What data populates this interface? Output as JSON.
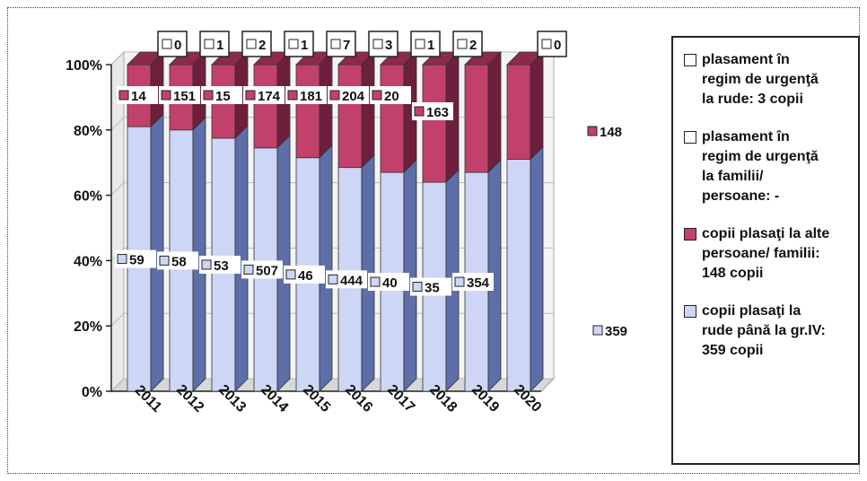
{
  "chart_data": {
    "type": "bar",
    "stacked": true,
    "percent": true,
    "three_d": true,
    "categories": [
      "2011",
      "2012",
      "2013",
      "2014",
      "2015",
      "2016",
      "2017",
      "2018",
      "2019",
      "2020"
    ],
    "y_ticks": [
      "0%",
      "20%",
      "40%",
      "60%",
      "80%",
      "100%"
    ],
    "ylim": [
      0,
      100
    ],
    "series": [
      {
        "name": "plasament în regim de urgenţă la rude",
        "color": "#ffffff",
        "values": [
          0,
          0,
          0,
          0,
          0,
          0,
          0,
          0,
          0,
          3
        ],
        "labels": [
          "0",
          "1",
          "2",
          "1",
          "7",
          "3",
          "1",
          "2",
          "",
          ""
        ]
      },
      {
        "name": "plasament în regim de urgenţă la familii/ persoane",
        "color": "#ffffff",
        "values": [
          0,
          0,
          0,
          0,
          0,
          0,
          0,
          0,
          0,
          0
        ],
        "labels": [
          "",
          "",
          "",
          "",
          "",
          "",
          "",
          "",
          "",
          "0"
        ]
      },
      {
        "name": "copii plasaţi la alte persoane/ familii",
        "color": "#c2416a",
        "pct": [
          19,
          20,
          22.5,
          25.5,
          28.5,
          31.5,
          33,
          36,
          33,
          29
        ],
        "labels": [
          "14",
          "151",
          "15",
          "174",
          "181",
          "204",
          "20",
          "163",
          "",
          "148"
        ]
      },
      {
        "name": "copii plasaţi la rude până la gr.IV",
        "color": "#cdd6f4",
        "pct": [
          81,
          80,
          77.5,
          74.5,
          71.5,
          68.5,
          67,
          64,
          67,
          71
        ],
        "labels": [
          "59",
          "58",
          "53",
          "507",
          "46",
          "444",
          "40",
          "35",
          "354",
          "359"
        ]
      }
    ]
  },
  "legend": {
    "items": [
      {
        "label": "plasament în\nregim de urgenţă\nla rude: 3 copii",
        "color": "#ffffff"
      },
      {
        "label": "plasament în\nregim de urgenţă\nla familii/\npersoane: -",
        "color": "#ffffff"
      },
      {
        "label": "copii plasaţi la alte\npersoane/ familii:\n148 copii",
        "color": "#c2416a"
      },
      {
        "label": "copii plasaţi la\nrude până la gr.IV:\n359 copii",
        "color": "#cdd6f4"
      }
    ]
  }
}
